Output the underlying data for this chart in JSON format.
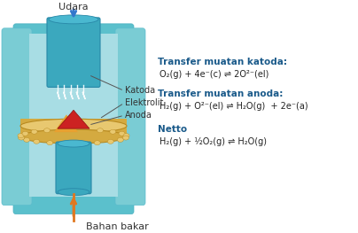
{
  "bg_color": "#ffffff",
  "udara_label": "Udara",
  "bahan_bakar_label": "Bahan bakar",
  "katoda_label": "Katoda",
  "elektrolit_label": "Elektrolit",
  "anoda_label": "Anoda",
  "header1": "Transfer muatan katoda:",
  "eq1": "O₂(g) + 4e⁻(c) ⇌ 2O²⁻(el)",
  "header2": "Transfer muatan anoda:",
  "eq2": "H₂(g) + O²⁻(el) ⇌ H₂O(g)  + 2e⁻(a)",
  "header3": "Netto",
  "eq3": "H₂(g) + ½O₂(g) ⇌ H₂O(g)",
  "blue_arrow_color": "#3377cc",
  "header_color": "#1a5a8a",
  "eq_color": "#222222",
  "label_color": "#333333",
  "teal_light": "#7accd4",
  "teal_mid": "#3ba8be",
  "teal_dark": "#2888a8",
  "teal_panel": "#5bc0cc",
  "gold_light": "#e8c870",
  "gold_mid": "#d4aa40",
  "gold_dark": "#b88a20",
  "orange_color": "#e07820",
  "red_color": "#cc2222",
  "white_color": "#ffffff"
}
